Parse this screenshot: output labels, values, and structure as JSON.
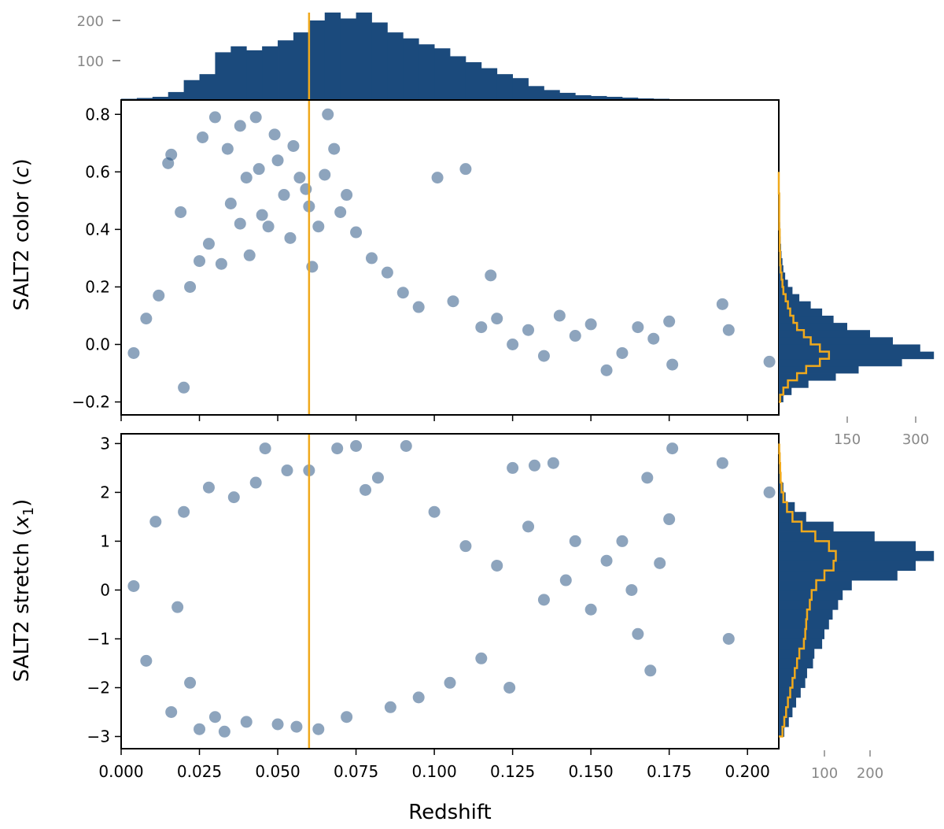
{
  "colors": {
    "primary": "#1b4a7c",
    "highlight": "#f0a91c",
    "frame": "#000000",
    "secondary_ticks": "#888888"
  },
  "marker": {
    "x": 0.06
  },
  "chart_data": [
    {
      "id": "top-hist",
      "type": "bar",
      "title": "",
      "xlabel": "",
      "ylabel": "",
      "xlim": [
        0.0,
        0.21
      ],
      "ylim": [
        0,
        240
      ],
      "yticks": [
        100,
        200
      ],
      "ytick_labels": [
        "100",
        "200"
      ],
      "bin_edges": [
        0.0,
        0.005,
        0.01,
        0.015,
        0.02,
        0.025,
        0.03,
        0.035,
        0.04,
        0.045,
        0.05,
        0.055,
        0.06,
        0.065,
        0.07,
        0.075,
        0.08,
        0.085,
        0.09,
        0.095,
        0.1,
        0.105,
        0.11,
        0.115,
        0.12,
        0.125,
        0.13,
        0.135,
        0.14,
        0.145,
        0.15,
        0.155,
        0.16,
        0.165,
        0.17,
        0.175,
        0.18,
        0.185,
        0.19,
        0.195,
        0.2,
        0.205,
        0.21
      ],
      "counts": [
        3,
        5,
        8,
        20,
        50,
        65,
        120,
        135,
        125,
        135,
        150,
        170,
        200,
        220,
        205,
        220,
        195,
        170,
        155,
        140,
        130,
        110,
        95,
        80,
        65,
        55,
        35,
        25,
        18,
        12,
        10,
        8,
        6,
        4,
        3,
        2,
        0,
        0,
        0,
        0,
        0,
        0
      ]
    },
    {
      "id": "color-scatter",
      "type": "scatter",
      "xlabel": "",
      "ylabel": "SALT2 color (c)",
      "xlim": [
        0.0,
        0.21
      ],
      "ylim": [
        -0.245,
        0.85
      ],
      "xticks": [
        0.0,
        0.025,
        0.05,
        0.075,
        0.1,
        0.125,
        0.15,
        0.175,
        0.2
      ],
      "yticks": [
        -0.2,
        0.0,
        0.2,
        0.4,
        0.6,
        0.8
      ],
      "ytick_labels": [
        "−0.2",
        "0.0",
        "0.2",
        "0.4",
        "0.6",
        "0.8"
      ],
      "points": [
        [
          0.004,
          -0.03
        ],
        [
          0.008,
          0.09
        ],
        [
          0.012,
          0.17
        ],
        [
          0.015,
          0.63
        ],
        [
          0.016,
          0.66
        ],
        [
          0.019,
          0.46
        ],
        [
          0.02,
          -0.15
        ],
        [
          0.022,
          0.2
        ],
        [
          0.025,
          0.29
        ],
        [
          0.026,
          0.72
        ],
        [
          0.028,
          0.35
        ],
        [
          0.03,
          0.79
        ],
        [
          0.032,
          0.28
        ],
        [
          0.034,
          0.68
        ],
        [
          0.035,
          0.49
        ],
        [
          0.038,
          0.42
        ],
        [
          0.038,
          0.76
        ],
        [
          0.04,
          0.58
        ],
        [
          0.041,
          0.31
        ],
        [
          0.043,
          0.79
        ],
        [
          0.044,
          0.61
        ],
        [
          0.045,
          0.45
        ],
        [
          0.047,
          0.41
        ],
        [
          0.049,
          0.73
        ],
        [
          0.05,
          0.64
        ],
        [
          0.052,
          0.52
        ],
        [
          0.054,
          0.37
        ],
        [
          0.055,
          0.69
        ],
        [
          0.057,
          0.58
        ],
        [
          0.059,
          0.54
        ],
        [
          0.06,
          0.48
        ],
        [
          0.061,
          0.27
        ],
        [
          0.063,
          0.41
        ],
        [
          0.065,
          0.59
        ],
        [
          0.066,
          0.8
        ],
        [
          0.068,
          0.68
        ],
        [
          0.07,
          0.46
        ],
        [
          0.072,
          0.52
        ],
        [
          0.075,
          0.39
        ],
        [
          0.08,
          0.3
        ],
        [
          0.085,
          0.25
        ],
        [
          0.09,
          0.18
        ],
        [
          0.095,
          0.13
        ],
        [
          0.101,
          0.58
        ],
        [
          0.106,
          0.15
        ],
        [
          0.11,
          0.61
        ],
        [
          0.115,
          0.06
        ],
        [
          0.118,
          0.24
        ],
        [
          0.12,
          0.09
        ],
        [
          0.125,
          0.0
        ],
        [
          0.13,
          0.05
        ],
        [
          0.135,
          -0.04
        ],
        [
          0.14,
          0.1
        ],
        [
          0.145,
          0.03
        ],
        [
          0.15,
          0.07
        ],
        [
          0.155,
          -0.09
        ],
        [
          0.16,
          -0.03
        ],
        [
          0.165,
          0.06
        ],
        [
          0.17,
          0.02
        ],
        [
          0.175,
          0.08
        ],
        [
          0.176,
          -0.07
        ],
        [
          0.192,
          0.14
        ],
        [
          0.194,
          0.05
        ],
        [
          0.207,
          -0.06
        ]
      ]
    },
    {
      "id": "color-hist",
      "type": "bar",
      "orientation": "horizontal",
      "xlabel": "",
      "ylabel": "",
      "xlim": [
        0,
        340
      ],
      "xticks": [
        150,
        300
      ],
      "xtick_labels": [
        "150",
        "300"
      ],
      "bin_edges": [
        -0.2,
        -0.175,
        -0.15,
        -0.125,
        -0.1,
        -0.075,
        -0.05,
        -0.025,
        0.0,
        0.025,
        0.05,
        0.075,
        0.1,
        0.125,
        0.15,
        0.175,
        0.2,
        0.225,
        0.25,
        0.275,
        0.3,
        0.325,
        0.35,
        0.375,
        0.4,
        0.425,
        0.45,
        0.475,
        0.5,
        0.525,
        0.55,
        0.575,
        0.6
      ],
      "counts": [
        10,
        28,
        65,
        125,
        175,
        270,
        340,
        310,
        250,
        200,
        150,
        120,
        95,
        70,
        45,
        30,
        20,
        14,
        10,
        8,
        6,
        5,
        4,
        3,
        3,
        2,
        2,
        1,
        1,
        1,
        1,
        1
      ],
      "outline_counts": [
        3,
        10,
        20,
        40,
        60,
        90,
        110,
        90,
        70,
        55,
        40,
        32,
        25,
        20,
        15,
        10,
        8,
        6,
        4,
        3,
        3,
        2,
        2,
        2,
        1,
        1,
        1,
        1,
        1,
        0,
        0,
        0
      ]
    },
    {
      "id": "stretch-scatter",
      "type": "scatter",
      "xlabel": "Redshift",
      "ylabel": "SALT2 stretch (x1)",
      "xlim": [
        0.0,
        0.21
      ],
      "ylim": [
        -3.25,
        3.2
      ],
      "xticks": [
        0.0,
        0.025,
        0.05,
        0.075,
        0.1,
        0.125,
        0.15,
        0.175,
        0.2
      ],
      "xtick_labels": [
        "0.000",
        "0.025",
        "0.050",
        "0.075",
        "0.100",
        "0.125",
        "0.150",
        "0.175",
        "0.200"
      ],
      "yticks": [
        -3,
        -2,
        -1,
        0,
        1,
        2,
        3
      ],
      "ytick_labels": [
        "−3",
        "−2",
        "−1",
        "0",
        "1",
        "2",
        "3"
      ],
      "points": [
        [
          0.004,
          0.08
        ],
        [
          0.008,
          -1.45
        ],
        [
          0.011,
          1.4
        ],
        [
          0.016,
          -2.5
        ],
        [
          0.018,
          -0.35
        ],
        [
          0.02,
          1.6
        ],
        [
          0.022,
          -1.9
        ],
        [
          0.025,
          -2.85
        ],
        [
          0.028,
          2.1
        ],
        [
          0.03,
          -2.6
        ],
        [
          0.033,
          -2.9
        ],
        [
          0.036,
          1.9
        ],
        [
          0.04,
          -2.7
        ],
        [
          0.043,
          2.2
        ],
        [
          0.046,
          2.9
        ],
        [
          0.05,
          -2.75
        ],
        [
          0.053,
          2.45
        ],
        [
          0.056,
          -2.8
        ],
        [
          0.06,
          2.45
        ],
        [
          0.063,
          -2.85
        ],
        [
          0.069,
          2.9
        ],
        [
          0.072,
          -2.6
        ],
        [
          0.075,
          2.95
        ],
        [
          0.078,
          2.05
        ],
        [
          0.082,
          2.3
        ],
        [
          0.086,
          -2.4
        ],
        [
          0.091,
          2.95
        ],
        [
          0.095,
          -2.2
        ],
        [
          0.1,
          1.6
        ],
        [
          0.105,
          -1.9
        ],
        [
          0.11,
          0.9
        ],
        [
          0.115,
          -1.4
        ],
        [
          0.12,
          0.5
        ],
        [
          0.124,
          -2.0
        ],
        [
          0.125,
          2.5
        ],
        [
          0.13,
          1.3
        ],
        [
          0.132,
          2.55
        ],
        [
          0.135,
          -0.2
        ],
        [
          0.138,
          2.6
        ],
        [
          0.142,
          0.2
        ],
        [
          0.145,
          1.0
        ],
        [
          0.15,
          -0.4
        ],
        [
          0.155,
          0.6
        ],
        [
          0.16,
          1.0
        ],
        [
          0.163,
          0.0
        ],
        [
          0.165,
          -0.9
        ],
        [
          0.168,
          2.3
        ],
        [
          0.169,
          -1.65
        ],
        [
          0.172,
          0.55
        ],
        [
          0.175,
          1.45
        ],
        [
          0.176,
          2.9
        ],
        [
          0.192,
          2.6
        ],
        [
          0.194,
          -1.0
        ],
        [
          0.207,
          2.0
        ]
      ]
    },
    {
      "id": "stretch-hist",
      "type": "bar",
      "orientation": "horizontal",
      "xlabel": "",
      "ylabel": "",
      "xlim": [
        0,
        340
      ],
      "xticks": [
        100,
        200
      ],
      "xtick_labels": [
        "100",
        "200"
      ],
      "bin_edges": [
        -3.0,
        -2.8,
        -2.6,
        -2.4,
        -2.2,
        -2.0,
        -1.8,
        -1.6,
        -1.4,
        -1.2,
        -1.0,
        -0.8,
        -0.6,
        -0.4,
        -0.2,
        0.0,
        0.2,
        0.4,
        0.6,
        0.8,
        1.0,
        1.2,
        1.4,
        1.6,
        1.8,
        2.0,
        2.2,
        2.4,
        2.6,
        2.8,
        3.0
      ],
      "counts": [
        12,
        22,
        30,
        38,
        48,
        58,
        62,
        75,
        78,
        95,
        100,
        110,
        118,
        130,
        140,
        160,
        260,
        300,
        340,
        300,
        210,
        120,
        60,
        35,
        15,
        10,
        6,
        4,
        3,
        2
      ],
      "outline_counts": [
        8,
        12,
        16,
        20,
        25,
        30,
        35,
        40,
        45,
        55,
        58,
        60,
        62,
        68,
        72,
        82,
        100,
        120,
        125,
        110,
        80,
        50,
        30,
        18,
        10,
        6,
        4,
        3,
        2,
        1
      ]
    }
  ]
}
